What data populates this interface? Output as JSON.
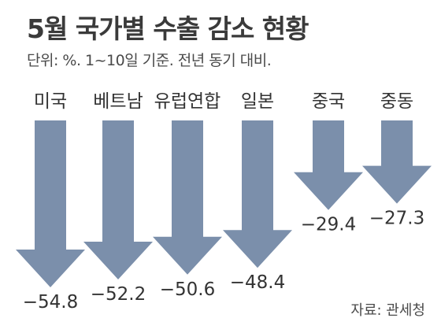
{
  "chart_data": {
    "type": "bar",
    "title": "5월 국가별 수출 감소 현황",
    "subtitle": "단위: %. 1~10일 기준. 전년 동기 대비.",
    "categories": [
      "미국",
      "베트남",
      "유럽연합",
      "일본",
      "중국",
      "중동"
    ],
    "values": [
      -54.8,
      -52.2,
      -50.6,
      -48.4,
      -29.4,
      -27.3
    ],
    "value_labels": [
      "−54.8",
      "−52.2",
      "−50.6",
      "−48.4",
      "−29.4",
      "−27.3"
    ],
    "ylim": [
      -54.8,
      0
    ],
    "grid": false,
    "legend": "none",
    "mark_shape": "down-arrow",
    "colors": {
      "arrow": "#7b8fab",
      "text": "#333333"
    }
  },
  "source": "자료: 관세청"
}
